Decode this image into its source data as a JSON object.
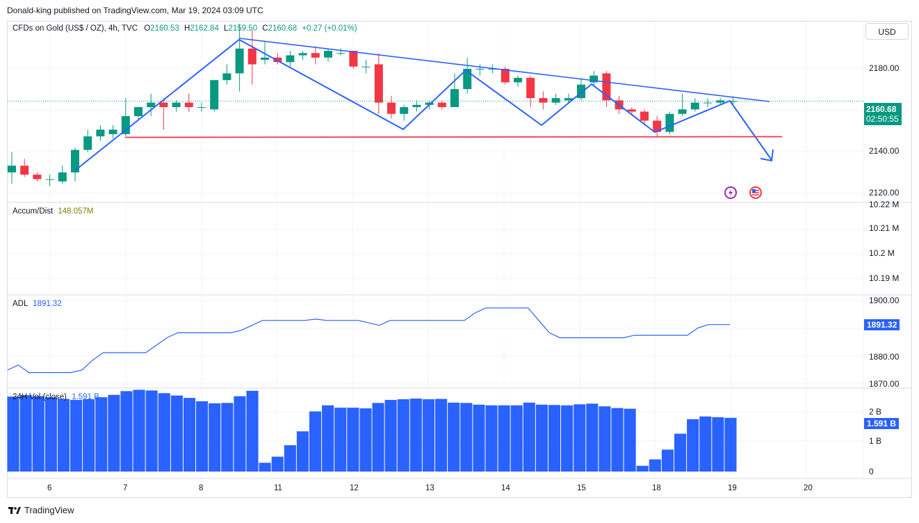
{
  "publisher": "Donald-king published on TradingView.com, Mar 19, 2024 03:09 UTC",
  "currency_button": "USD",
  "price_legend": {
    "symbol": "CFDs on Gold (US$ / OZ), 4h, TVC",
    "o_label": "O",
    "o": "2160.53",
    "h_label": "H",
    "h": "2162.84",
    "l_label": "L",
    "l": "2159.50",
    "c_label": "C",
    "c": "2160.68",
    "change": "+0.27 (+0.01%)"
  },
  "accum": {
    "label": "Accum/Dist",
    "value": "148.057M",
    "axis": [
      "10.22 M",
      "10.21 M",
      "10.2 M",
      "10.19 M"
    ]
  },
  "adl": {
    "label": "ADL",
    "value": "1891.32",
    "axis": [
      "1900.00",
      "1890.00",
      "1880.00",
      "1870.00"
    ]
  },
  "vol": {
    "label": "24H Vol (close)",
    "value": "1.591 B",
    "axis": [
      "2 B",
      "1 B",
      "0"
    ]
  },
  "price_axis": [
    "2180.00",
    "2160.00",
    "2140.00",
    "2120.00"
  ],
  "price_tag": {
    "price": "2160.68",
    "countdown": "02:50:55"
  },
  "adl_tag": "1891.32",
  "vol_tag": "1.591 B",
  "x_labels": [
    "6",
    "7",
    "8",
    "11",
    "12",
    "13",
    "14",
    "15",
    "18",
    "19",
    "20"
  ],
  "footer_logo": "TradingView",
  "colors": {
    "up": "#089981",
    "down": "#f23645",
    "line": "#2962ff",
    "support": "#f23645",
    "vol": "#2962ff"
  },
  "chart_data": [
    {
      "type": "candlestick",
      "title": "CFDs on Gold (US$ / OZ), 4h, TVC",
      "ylim": [
        2116,
        2196
      ],
      "x_labels": [
        "6",
        "7",
        "8",
        "11",
        "12",
        "13",
        "14",
        "15",
        "18",
        "19",
        "20"
      ],
      "candles": [
        {
          "o": 2129,
          "h": 2138,
          "l": 2124,
          "c": 2132
        },
        {
          "o": 2132,
          "h": 2135,
          "l": 2127,
          "c": 2128
        },
        {
          "o": 2128,
          "h": 2129,
          "l": 2125,
          "c": 2126
        },
        {
          "o": 2126,
          "h": 2128,
          "l": 2123,
          "c": 2126
        },
        {
          "o": 2125,
          "h": 2132,
          "l": 2124,
          "c": 2129
        },
        {
          "o": 2129,
          "h": 2140,
          "l": 2125,
          "c": 2139
        },
        {
          "o": 2139,
          "h": 2148,
          "l": 2138,
          "c": 2145
        },
        {
          "o": 2145,
          "h": 2150,
          "l": 2143,
          "c": 2148
        },
        {
          "o": 2146,
          "h": 2150,
          "l": 2144,
          "c": 2148
        },
        {
          "o": 2146,
          "h": 2162,
          "l": 2145,
          "c": 2154
        },
        {
          "o": 2154,
          "h": 2158,
          "l": 2152,
          "c": 2158
        },
        {
          "o": 2158,
          "h": 2164,
          "l": 2154,
          "c": 2160
        },
        {
          "o": 2160,
          "h": 2162,
          "l": 2148,
          "c": 2158
        },
        {
          "o": 2158,
          "h": 2161,
          "l": 2156,
          "c": 2160
        },
        {
          "o": 2160,
          "h": 2164,
          "l": 2156,
          "c": 2158
        },
        {
          "o": 2158,
          "h": 2160,
          "l": 2156,
          "c": 2158
        },
        {
          "o": 2157,
          "h": 2170,
          "l": 2156,
          "c": 2170
        },
        {
          "o": 2170,
          "h": 2177,
          "l": 2168,
          "c": 2173
        },
        {
          "o": 2173,
          "h": 2195,
          "l": 2165,
          "c": 2184
        },
        {
          "o": 2184,
          "h": 2192,
          "l": 2168,
          "c": 2177
        },
        {
          "o": 2179,
          "h": 2187,
          "l": 2177,
          "c": 2180
        },
        {
          "o": 2180,
          "h": 2182,
          "l": 2177,
          "c": 2178
        },
        {
          "o": 2178,
          "h": 2183,
          "l": 2176,
          "c": 2181
        },
        {
          "o": 2181,
          "h": 2183,
          "l": 2179,
          "c": 2182
        },
        {
          "o": 2182,
          "h": 2185,
          "l": 2177,
          "c": 2180
        },
        {
          "o": 2180,
          "h": 2184,
          "l": 2178,
          "c": 2183
        },
        {
          "o": 2182,
          "h": 2184,
          "l": 2181,
          "c": 2182
        },
        {
          "o": 2183,
          "h": 2183,
          "l": 2175,
          "c": 2176
        },
        {
          "o": 2176,
          "h": 2179,
          "l": 2173,
          "c": 2176
        },
        {
          "o": 2177,
          "h": 2182,
          "l": 2155,
          "c": 2160
        },
        {
          "o": 2160,
          "h": 2163,
          "l": 2153,
          "c": 2155
        },
        {
          "o": 2155,
          "h": 2159,
          "l": 2152,
          "c": 2158
        },
        {
          "o": 2158,
          "h": 2161,
          "l": 2156,
          "c": 2159
        },
        {
          "o": 2159,
          "h": 2161,
          "l": 2157,
          "c": 2160
        },
        {
          "o": 2160,
          "h": 2161,
          "l": 2157,
          "c": 2158
        },
        {
          "o": 2158,
          "h": 2173,
          "l": 2158,
          "c": 2166
        },
        {
          "o": 2166,
          "h": 2180,
          "l": 2164,
          "c": 2175
        },
        {
          "o": 2175,
          "h": 2177,
          "l": 2172,
          "c": 2175
        },
        {
          "o": 2175,
          "h": 2177,
          "l": 2173,
          "c": 2175
        },
        {
          "o": 2175,
          "h": 2176,
          "l": 2168,
          "c": 2169
        },
        {
          "o": 2169,
          "h": 2172,
          "l": 2167,
          "c": 2171
        },
        {
          "o": 2171,
          "h": 2172,
          "l": 2158,
          "c": 2162
        },
        {
          "o": 2162,
          "h": 2165,
          "l": 2157,
          "c": 2160
        },
        {
          "o": 2160,
          "h": 2164,
          "l": 2159,
          "c": 2162
        },
        {
          "o": 2161,
          "h": 2164,
          "l": 2160,
          "c": 2162
        },
        {
          "o": 2162,
          "h": 2171,
          "l": 2161,
          "c": 2168
        },
        {
          "o": 2169,
          "h": 2174,
          "l": 2167,
          "c": 2172
        },
        {
          "o": 2173,
          "h": 2174,
          "l": 2158,
          "c": 2161
        },
        {
          "o": 2161,
          "h": 2163,
          "l": 2155,
          "c": 2157
        },
        {
          "o": 2157,
          "h": 2158,
          "l": 2155,
          "c": 2156
        },
        {
          "o": 2156,
          "h": 2157,
          "l": 2150,
          "c": 2152
        },
        {
          "o": 2152,
          "h": 2154,
          "l": 2145,
          "c": 2147
        },
        {
          "o": 2147,
          "h": 2156,
          "l": 2146,
          "c": 2155
        },
        {
          "o": 2155,
          "h": 2164,
          "l": 2154,
          "c": 2157
        },
        {
          "o": 2157,
          "h": 2162,
          "l": 2156,
          "c": 2160
        },
        {
          "o": 2160,
          "h": 2162,
          "l": 2158,
          "c": 2160
        },
        {
          "o": 2160,
          "h": 2162,
          "l": 2159,
          "c": 2161
        },
        {
          "o": 2160.53,
          "h": 2162.84,
          "l": 2159.5,
          "c": 2160.68
        }
      ],
      "support_level": 2147
    },
    {
      "type": "line",
      "title": "ADL",
      "ylim": [
        1866,
        1903
      ],
      "series": [
        {
          "name": "ADL",
          "values": [
            1873,
            1875,
            1872,
            1872,
            1872,
            1872,
            1872,
            1873,
            1877,
            1880,
            1880,
            1880,
            1880,
            1880,
            1883,
            1886,
            1888,
            1888,
            1888,
            1888,
            1888,
            1888,
            1889,
            1891,
            1893,
            1893,
            1893,
            1893,
            1893,
            1893.5,
            1893,
            1893,
            1893,
            1893,
            1892,
            1891,
            1893,
            1893,
            1893,
            1893,
            1893,
            1893,
            1893,
            1893,
            1896,
            1898,
            1898,
            1898,
            1898,
            1898,
            1893,
            1888,
            1886,
            1886,
            1886,
            1886,
            1886,
            1886,
            1886,
            1887,
            1887,
            1887,
            1887,
            1887,
            1887,
            1890,
            1891.32,
            1891.32,
            1891.32
          ]
        }
      ]
    },
    {
      "type": "bar",
      "title": "24H Vol (close)",
      "ylim": [
        0,
        2.45
      ],
      "series": [
        {
          "name": "24H Vol (close)",
          "values": [
            2.22,
            2.26,
            2.23,
            2.2,
            2.15,
            2.12,
            2.14,
            2.2,
            2.27,
            2.38,
            2.42,
            2.4,
            2.32,
            2.25,
            2.18,
            2.08,
            2.02,
            2.03,
            2.23,
            2.39,
            0.26,
            0.44,
            0.78,
            1.19,
            1.78,
            1.96,
            1.89,
            1.89,
            1.87,
            2.03,
            2.12,
            2.14,
            2.16,
            2.14,
            2.15,
            2.04,
            2.03,
            1.98,
            1.96,
            1.96,
            1.96,
            2.04,
            1.98,
            1.97,
            1.96,
            1.99,
            2.01,
            1.93,
            1.88,
            1.86,
            0.17,
            0.36,
            0.65,
            1.12,
            1.55,
            1.63,
            1.61,
            1.59
          ]
        }
      ]
    }
  ]
}
